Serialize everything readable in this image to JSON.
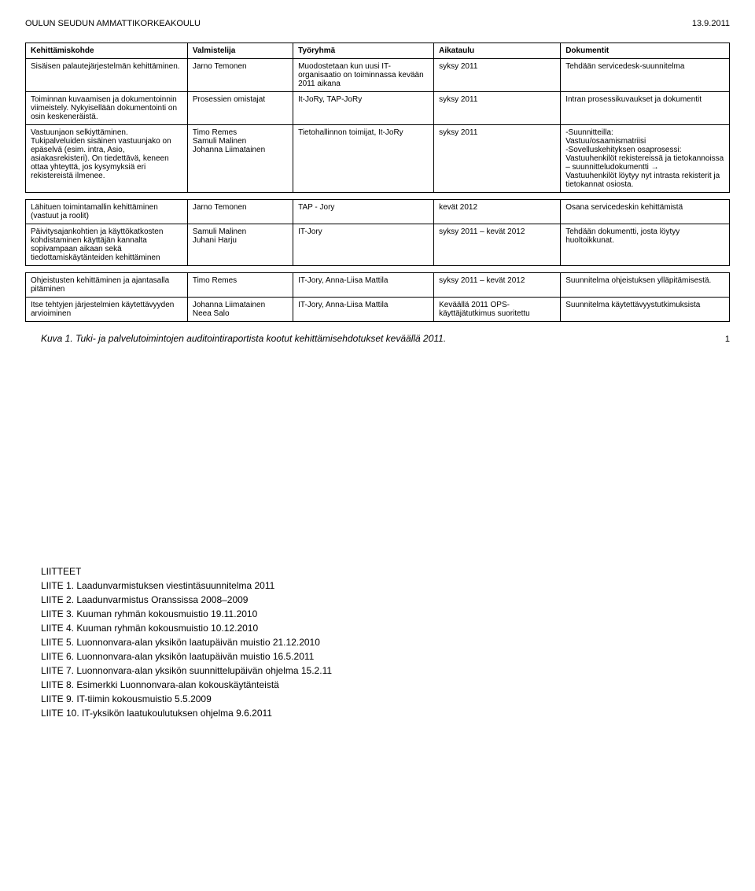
{
  "header": {
    "org": "OULUN SEUDUN AMMATTIKORKEAKOULU",
    "date": "13.9.2011"
  },
  "table1": {
    "headers": [
      "Kehittämiskohde",
      "Valmistelija",
      "Työryhmä",
      "Aikataulu",
      "Dokumentit"
    ],
    "rows": [
      [
        "Sisäisen palautejärjestelmän kehittäminen.",
        "Jarno Temonen",
        "Muodostetaan kun uusi IT-organisaatio on toiminnassa kevään 2011 aikana",
        "syksy 2011",
        "Tehdään servicedesk-suunnitelma"
      ],
      [
        "Toiminnan kuvaamisen ja dokumentoinnin viimeistely. Nykyisellään dokumentointi on osin keskeneräistä.",
        "Prosessien omistajat",
        "It-JoRy, TAP-JoRy",
        "syksy 2011",
        "Intran prosessikuvaukset ja dokumentit"
      ],
      [
        "Vastuunjaon selkiyttäminen. Tukipalveluiden sisäinen vastuunjako on epäselvä (esim. intra, Asio, asiakasrekisteri). On tiedettävä, keneen ottaa yhteyttä, jos kysymyksiä eri rekistereistä ilmenee.",
        "Timo Remes\nSamuli Malinen\nJohanna Liimatainen",
        "Tietohallinnon toimijat, It-JoRy",
        "syksy 2011",
        "-Suunnitteilla:\nVastuu/osaamismatriisi\n-Sovelluskehityksen osaprosessi:\nVastuuhenkilöt rekistereissä ja tietokannoissa – suunnitteludokumentti →\nVastuuhenkilöt löytyy nyt intrasta rekisterit ja tietokannat osiosta."
      ]
    ]
  },
  "table2": {
    "rows": [
      [
        "Lähituen toimintamallin kehittäminen (vastuut ja roolit)",
        "Jarno Temonen",
        "TAP - Jory",
        "kevät 2012",
        "Osana servicedeskin kehittämistä"
      ],
      [
        "Päivitysajankohtien ja käyttökatkosten kohdistaminen käyttäjän kannalta sopivampaan aikaan sekä tiedottamiskäytänteiden kehittäminen",
        "Samuli Malinen\nJuhani Harju",
        "IT-Jory",
        "syksy 2011 – kevät 2012",
        "Tehdään dokumentti, josta löytyy huoltoikkunat."
      ]
    ]
  },
  "table3": {
    "rows": [
      [
        "Ohjeistusten kehittäminen ja ajantasalla pitäminen",
        "Timo Remes",
        "IT-Jory, Anna-Liisa Mattila",
        "syksy 2011 – kevät 2012",
        "Suunnitelma ohjeistuksen ylläpitämisestä."
      ],
      [
        "Itse tehtyjen järjestelmien käytettävyyden arvioiminen",
        "Johanna Liimatainen\nNeea Salo",
        "IT-Jory, Anna-Liisa Mattila",
        "Keväällä 2011 OPS-käyttäjätutkimus suoritettu",
        "Suunnitelma käytettävyystutkimuksista"
      ]
    ]
  },
  "caption": "Kuva 1. Tuki- ja palvelutoimintojen auditointiraportista kootut kehittämisehdotukset keväällä 2011.",
  "pagenum": "1",
  "attachments": {
    "heading": "LIITTEET",
    "items": [
      "LIITE 1. Laadunvarmistuksen viestintäsuunnitelma  2011",
      "LIITE 2. Laadunvarmistus Oranssissa 2008–2009",
      "LIITE 3. Kuuman ryhmän kokousmuistio 19.11.2010",
      "LIITE 4. Kuuman ryhmän kokousmuistio 10.12.2010",
      "LIITE 5. Luonnonvara-alan yksikön laatupäivän muistio 21.12.2010",
      "LIITE 6. Luonnonvara-alan yksikön laatupäivän muistio 16.5.2011",
      "LIITE 7. Luonnonvara-alan yksikön suunnittelupäivän ohjelma 15.2.11",
      "LIITE 8. Esimerkki Luonnonvara-alan kokouskäytänteistä",
      "LIITE 9. IT-tiimin kokousmuistio 5.5.2009",
      "LIITE 10. IT-yksikön laatukoulutuksen ohjelma 9.6.2011"
    ]
  }
}
